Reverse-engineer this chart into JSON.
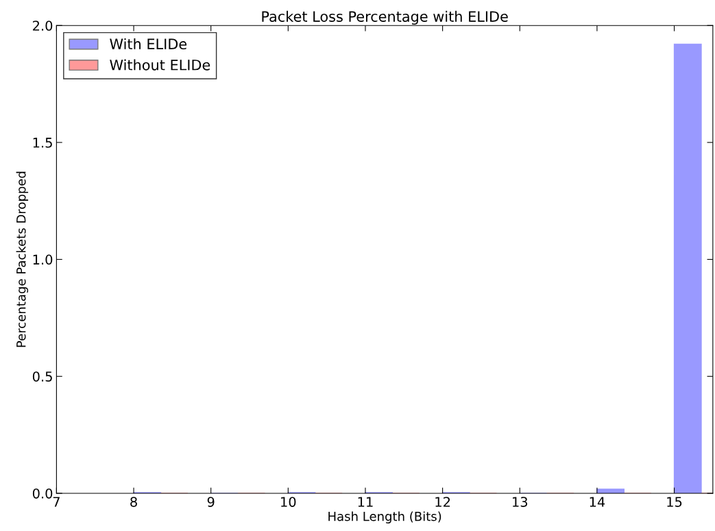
{
  "chart_data": {
    "type": "bar",
    "title": "Packet Loss Percentage with ELIDe",
    "xlabel": "Hash Length (Bits)",
    "ylabel": "Percentage Packets Dropped",
    "x": [
      8,
      9,
      10,
      11,
      12,
      13,
      14,
      15
    ],
    "series": [
      {
        "name": "With ELIDe",
        "color": "#9999ff",
        "values": [
          0.003,
          0,
          0.003,
          0.003,
          0.003,
          0,
          0.018,
          1.92
        ]
      },
      {
        "name": "Without ELIDe",
        "color": "#ff9999",
        "values": [
          0,
          0,
          0,
          0,
          0,
          0,
          0,
          0
        ]
      }
    ],
    "xlim": [
      7,
      15.5
    ],
    "xticks": [
      7,
      8,
      9,
      10,
      11,
      12,
      13,
      14,
      15
    ],
    "ylim": [
      0,
      2.0
    ],
    "yticks": [
      {
        "value": 0,
        "label": "0.0"
      },
      {
        "value": 0.5,
        "label": "0.5"
      },
      {
        "value": 1.0,
        "label": "1.0"
      },
      {
        "value": 1.5,
        "label": "1.5"
      },
      {
        "value": 2.0,
        "label": "2.0"
      }
    ],
    "legend": "top left",
    "grid": false
  }
}
